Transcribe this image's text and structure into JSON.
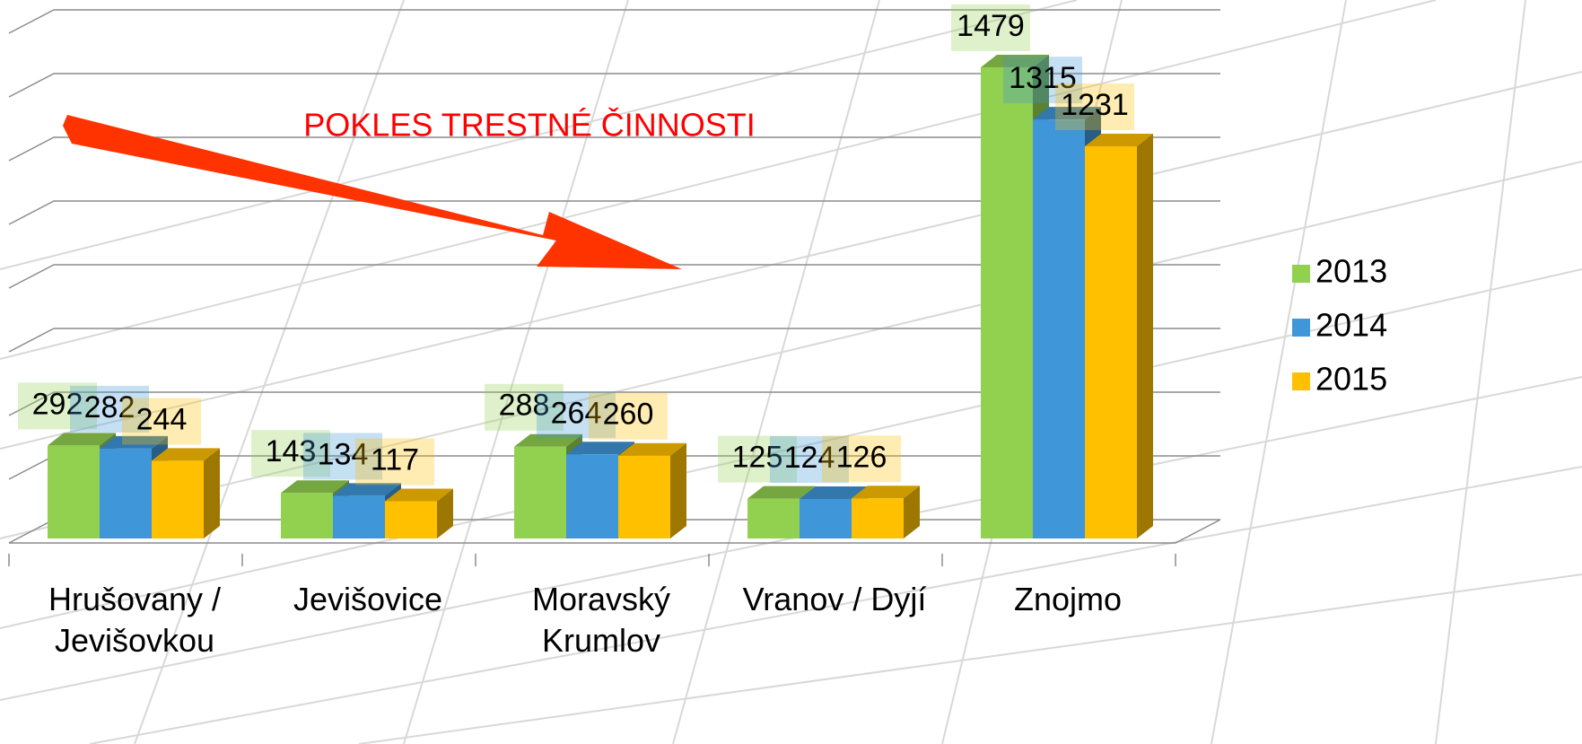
{
  "chart_data": {
    "type": "bar3d",
    "annotation": "POKLES TRESTNÉ ČINNOSTI",
    "categories": [
      "Hrušovany / Jevišovkou",
      "Jevišovice",
      "Moravský Krumlov",
      "Vranov / Dyjí",
      "Znojmo"
    ],
    "series": [
      {
        "name": "2013",
        "color": "#92d050",
        "values": [
          292,
          143,
          288,
          125,
          1479
        ]
      },
      {
        "name": "2014",
        "color": "#3f96d8",
        "values": [
          282,
          134,
          264,
          124,
          1315
        ]
      },
      {
        "name": "2015",
        "color": "#ffc000",
        "values": [
          244,
          117,
          260,
          126,
          1231
        ]
      }
    ],
    "ylim": [
      0,
      1600
    ],
    "yticks": [
      0,
      200,
      400,
      600,
      800,
      1000,
      1200,
      1400,
      1600
    ],
    "grid": true,
    "legend": "right"
  }
}
